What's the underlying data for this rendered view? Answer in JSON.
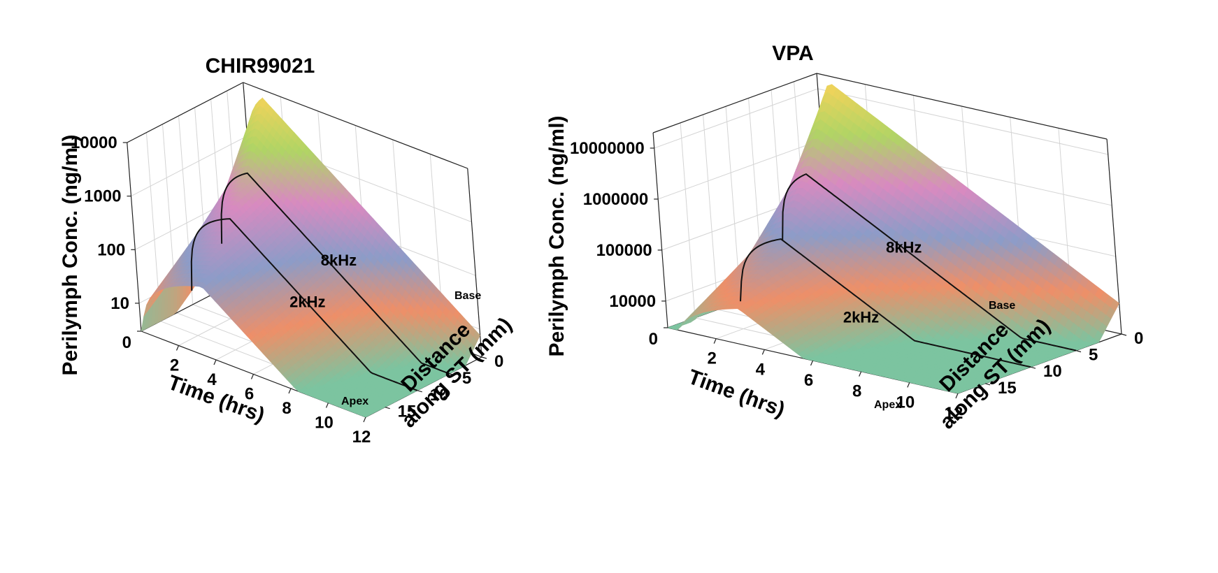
{
  "chart_data": [
    {
      "type": "surface3d",
      "title": "CHIR99021",
      "zlabel": "Perilymph Conc. (ng/ml)",
      "xlabel": "Time (hrs)",
      "ylabel_line1": "Distance",
      "ylabel_line2": "along ST (mm)",
      "zscale": "log",
      "zlim": [
        3,
        10000
      ],
      "z_ticks": [
        "0",
        "10",
        "100",
        "1000",
        "10000"
      ],
      "x_ticks": [
        "2",
        "4",
        "6",
        "8",
        "10",
        "12"
      ],
      "xlim": [
        0,
        12
      ],
      "y_ticks": [
        "0",
        "5",
        "10",
        "15"
      ],
      "ylim": [
        0,
        18
      ],
      "y_end_labels": {
        "base": "Base",
        "apex": "Apex"
      },
      "grid": true,
      "peak": {
        "time_hrs": 1.0,
        "distance_mm": 0,
        "conc": 7000
      },
      "contours": [
        {
          "label": "8kHz",
          "distance_mm": 5,
          "peak_conc": 700
        },
        {
          "label": "2kHz",
          "distance_mm": 10,
          "peak_conc": 250
        }
      ],
      "apex_profile_peak_conc": 60,
      "colormap": [
        "#7cc4a0",
        "#ee8f68",
        "#8c9cc8",
        "#d88ac0",
        "#b0d465",
        "#f2d35a"
      ]
    },
    {
      "type": "surface3d",
      "title": "VPA",
      "zlabel": "Perilymph Conc. (ng/ml)",
      "xlabel": "Time (hrs)",
      "ylabel_line1": "Distance",
      "ylabel_line2": "along ST (mm)",
      "zscale": "log",
      "zlim": [
        3000,
        20000000
      ],
      "z_ticks": [
        "0",
        "10000",
        "100000",
        "1000000",
        "10000000"
      ],
      "x_ticks": [
        "2",
        "4",
        "6",
        "8",
        "10",
        "12"
      ],
      "xlim": [
        0,
        12
      ],
      "y_ticks": [
        "0",
        "5",
        "10",
        "15"
      ],
      "ylim": [
        0,
        18
      ],
      "y_end_labels": {
        "base": "Base",
        "apex": "Apex"
      },
      "grid": true,
      "peak": {
        "time_hrs": 0.5,
        "distance_mm": 0,
        "conc": 15000000
      },
      "contours": [
        {
          "label": "8kHz",
          "distance_mm": 5,
          "peak_conc": 600000
        },
        {
          "label": "2kHz",
          "distance_mm": 10,
          "peak_conc": 80000
        }
      ],
      "apex_profile_peak_conc": 15000,
      "colormap": [
        "#7cc4a0",
        "#ee8f68",
        "#8c9cc8",
        "#d88ac0",
        "#b0d465",
        "#f2d35a"
      ]
    }
  ]
}
